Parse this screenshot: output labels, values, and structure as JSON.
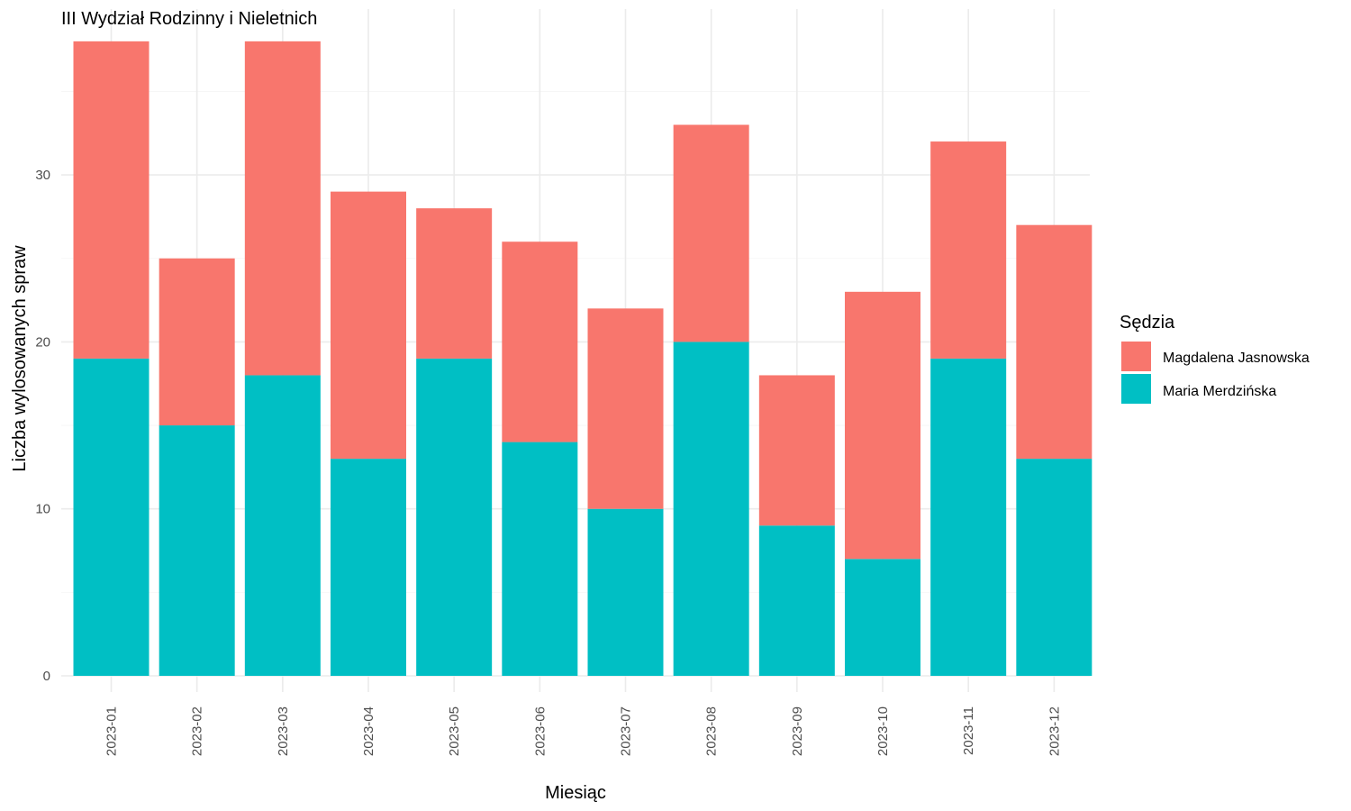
{
  "chart_data": {
    "type": "bar",
    "stacked": true,
    "title": "III Wydział Rodzinny i Nieletnich",
    "xlabel": "Miesiąc",
    "ylabel": "Liczba wylosowanych spraw",
    "categories": [
      "2023-01",
      "2023-02",
      "2023-03",
      "2023-04",
      "2023-05",
      "2023-06",
      "2023-07",
      "2023-08",
      "2023-09",
      "2023-10",
      "2023-11",
      "2023-12"
    ],
    "series": [
      {
        "name": "Maria Merdzińska",
        "color": "#00BFC4",
        "values": [
          19,
          15,
          18,
          13,
          19,
          14,
          10,
          20,
          9,
          7,
          19,
          13
        ]
      },
      {
        "name": "Magdalena Jasnowska",
        "color": "#F8766D",
        "values": [
          19,
          10,
          20,
          16,
          9,
          12,
          12,
          13,
          9,
          16,
          13,
          14
        ]
      }
    ],
    "ylim": [
      0,
      39
    ],
    "yticks": [
      0,
      10,
      20,
      30
    ],
    "grid": true,
    "legend": {
      "title": "Sędzia",
      "position": "right",
      "order": [
        "Magdalena Jasnowska",
        "Maria Merdzińska"
      ]
    }
  }
}
